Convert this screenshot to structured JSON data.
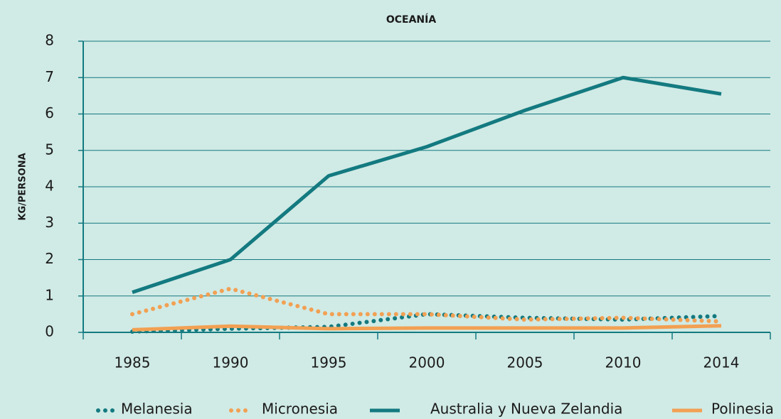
{
  "chart_data": {
    "type": "line",
    "title": "OCEANÍA",
    "y_label": "KG/PERSONA",
    "categories": [
      "1985",
      "1990",
      "1995",
      "2000",
      "2005",
      "2010",
      "2014"
    ],
    "series": [
      {
        "name": "Melanesia",
        "color": "#137a80",
        "line_style": "dotted",
        "values": [
          0.02,
          0.1,
          0.15,
          0.5,
          0.4,
          0.35,
          0.45
        ]
      },
      {
        "name": "Micronesia",
        "color": "#f2a052",
        "line_style": "dotted",
        "values": [
          0.5,
          1.2,
          0.5,
          0.5,
          0.35,
          0.4,
          0.3
        ]
      },
      {
        "name": "Australia y Nueva Zelandia",
        "color": "#137a80",
        "line_style": "solid",
        "values": [
          1.1,
          2.0,
          4.3,
          5.1,
          6.1,
          7.0,
          6.55
        ]
      },
      {
        "name": "Polinesia",
        "color": "#f2a052",
        "line_style": "solid",
        "values": [
          0.07,
          0.17,
          0.1,
          0.12,
          0.12,
          0.12,
          0.18
        ]
      }
    ],
    "ylim": [
      0,
      8
    ],
    "yticks": [
      0,
      1,
      2,
      3,
      4,
      5,
      6,
      7,
      8
    ],
    "grid": true,
    "legend": "bottom"
  }
}
